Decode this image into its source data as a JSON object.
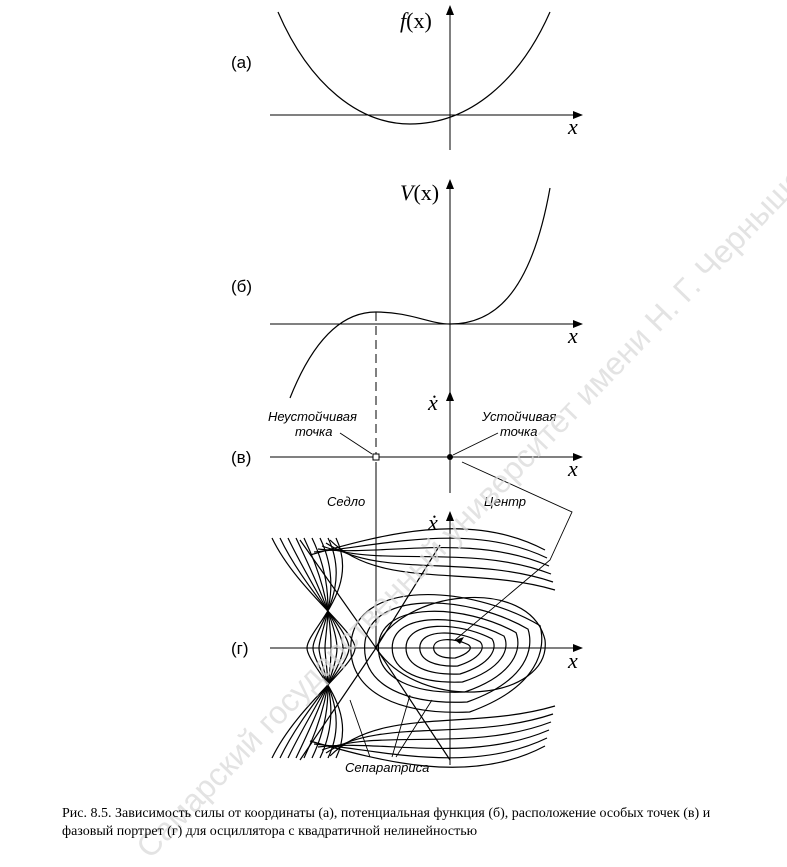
{
  "panels": [
    {
      "id": "a",
      "label": "(а)",
      "function_label": "f",
      "arg": "(x)",
      "x_label": "x"
    },
    {
      "id": "b",
      "label": "(б)",
      "function_label": "V",
      "arg": "(x)",
      "x_label": "x"
    },
    {
      "id": "v",
      "label": "(в)",
      "y_label": "ẋ",
      "x_label": "x"
    },
    {
      "id": "g",
      "label": "(г)",
      "y_label": "ẋ",
      "x_label": "x"
    }
  ],
  "annotations": {
    "unstable_line1": "Неустойчивая",
    "unstable_line2": "точка",
    "stable_line1": "Устойчивая",
    "stable_line2": "точка",
    "saddle": "Седло",
    "center": "Центр",
    "separatrix": "Сепаратриса"
  },
  "caption": "Рис. 8.5. Зависимость силы от координаты (а), потенциальная функция (б), расположение особых точек (в) и фазовый портрет (г) для осциллятора с квадратичной нелинейностью",
  "watermark": "Самарский государственный университет имени Н. Г. Чернышевского",
  "colors": {
    "ink": "#000000",
    "watermark": "#d9d9d9",
    "background": "#ffffff"
  }
}
